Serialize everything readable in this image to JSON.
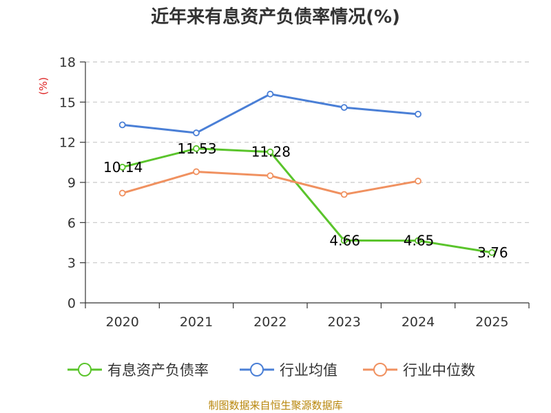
{
  "chart_data": {
    "type": "line",
    "title": "近年来有息资产负债率情况(%)",
    "ylabel": "(%)",
    "categories": [
      "2020",
      "2021",
      "2022",
      "2023",
      "2024",
      "2025"
    ],
    "ylim": [
      0,
      18
    ],
    "yticks": [
      "0",
      "3",
      "6",
      "9",
      "12",
      "15",
      "18"
    ],
    "grid": true,
    "legend_position": "bottom",
    "series": [
      {
        "name": "有息资产负债率",
        "color": "#5ac42b",
        "values": [
          10.14,
          11.53,
          11.28,
          4.66,
          4.65,
          3.76
        ],
        "labels": [
          "10.14",
          "11.53",
          "11.28",
          "4.66",
          "4.65",
          "3.76"
        ]
      },
      {
        "name": "行业均值",
        "color": "#4a7fd6",
        "values": [
          13.3,
          12.7,
          15.6,
          14.6,
          14.1,
          null
        ]
      },
      {
        "name": "行业中位数",
        "color": "#f09160",
        "values": [
          8.2,
          9.8,
          9.5,
          8.1,
          9.1,
          null
        ]
      }
    ]
  },
  "source": "制图数据来自恒生聚源数据库"
}
